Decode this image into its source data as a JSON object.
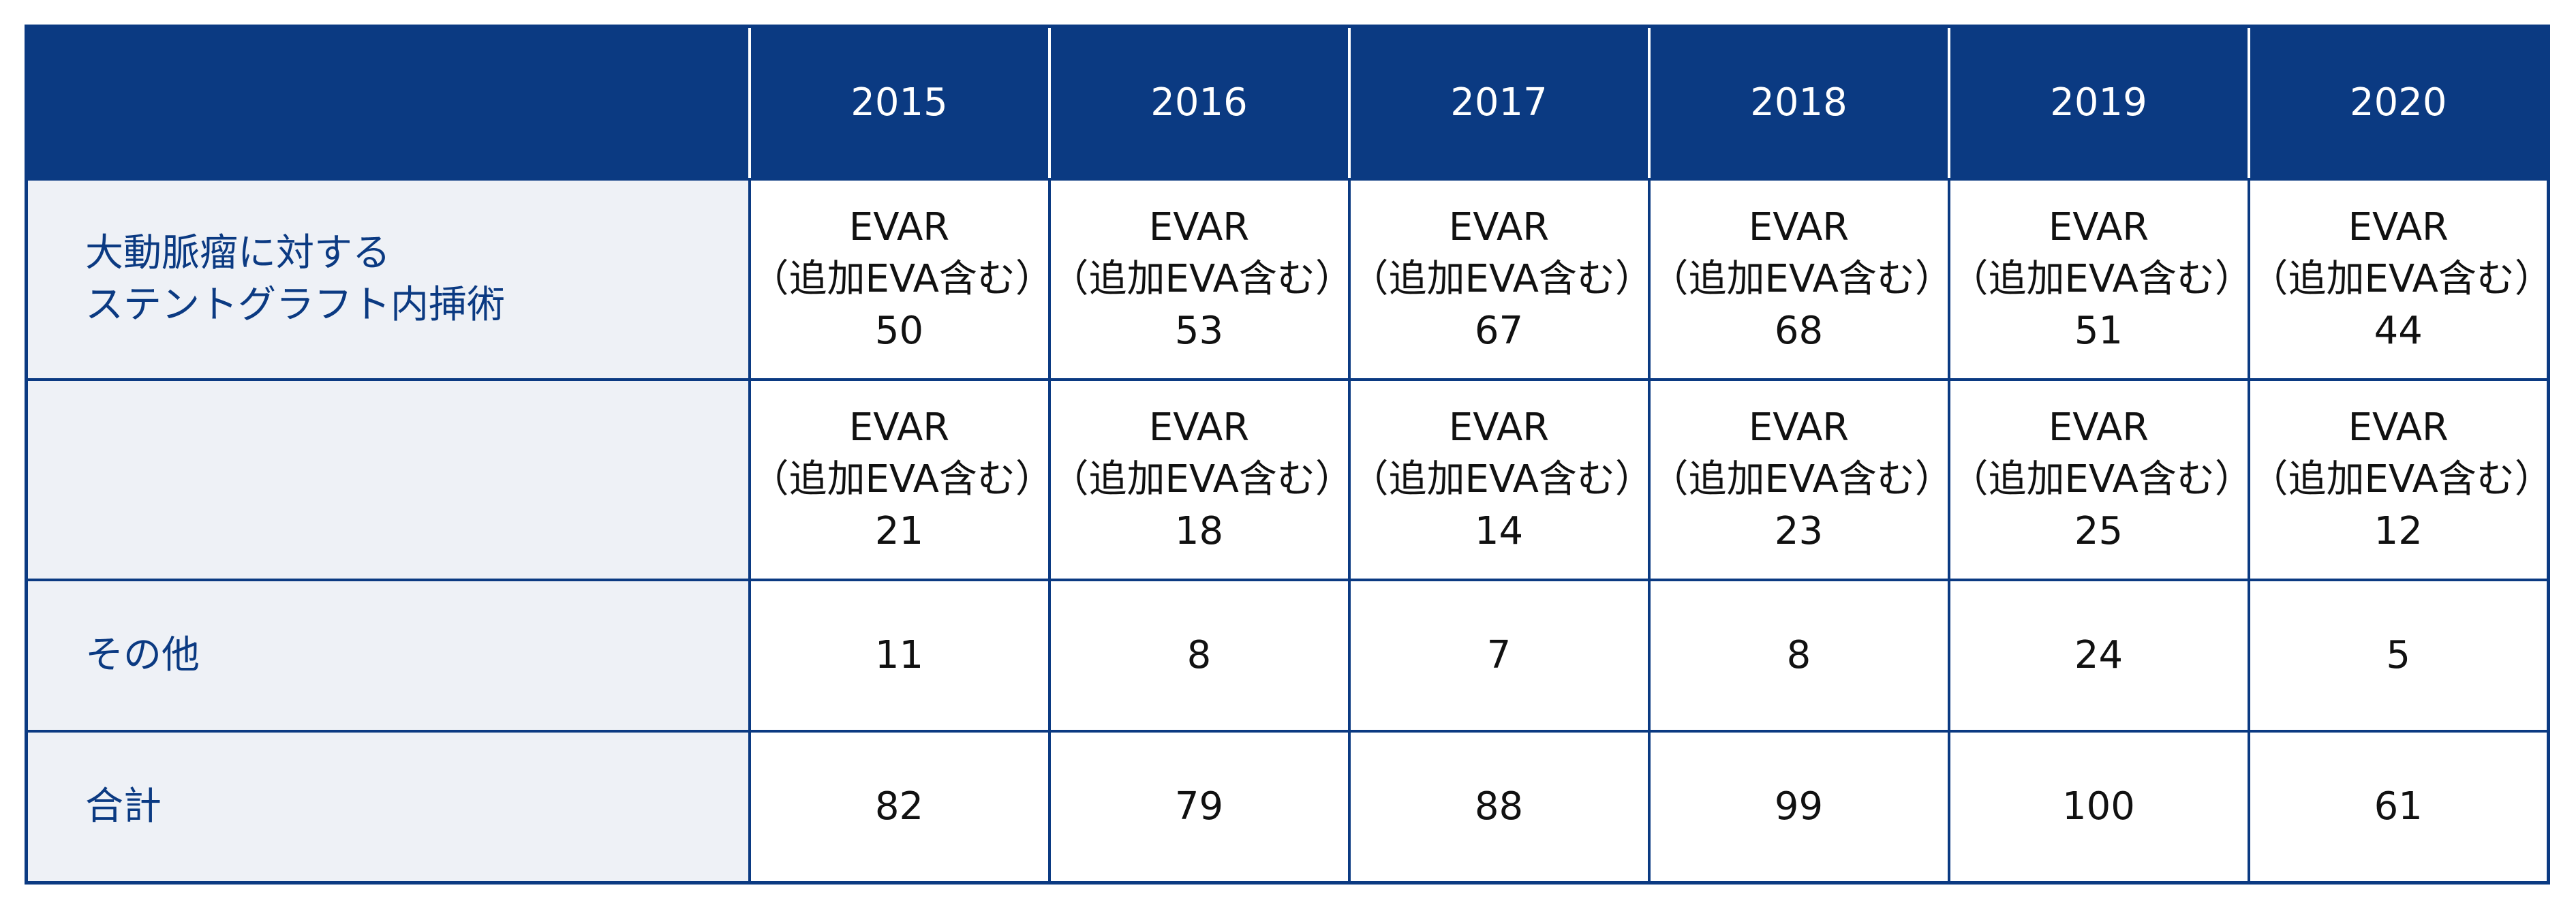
{
  "table": {
    "years": [
      "2015",
      "2016",
      "2017",
      "2018",
      "2019",
      "2020"
    ],
    "rows": [
      {
        "label": [
          "大動脈瘤に対する",
          "ステントグラフト内挿術"
        ],
        "cells": [
          {
            "method": "EVAR",
            "note": "（追加EVA含む）",
            "count": 50
          },
          {
            "method": "EVAR",
            "note": "（追加EVA含む）",
            "count": 53
          },
          {
            "method": "EVAR",
            "note": "（追加EVA含む）",
            "count": 67
          },
          {
            "method": "EVAR",
            "note": "（追加EVA含む）",
            "count": 68
          },
          {
            "method": "EVAR",
            "note": "（追加EVA含む）",
            "count": 51
          },
          {
            "method": "EVAR",
            "note": "（追加EVA含む）",
            "count": 44
          }
        ]
      },
      {
        "cells": [
          {
            "method": "EVAR",
            "note": "（追加EVA含む）",
            "count": 21
          },
          {
            "method": "EVAR",
            "note": "（追加EVA含む）",
            "count": 18
          },
          {
            "method": "EVAR",
            "note": "（追加EVA含む）",
            "count": 14
          },
          {
            "method": "EVAR",
            "note": "（追加EVA含む）",
            "count": 23
          },
          {
            "method": "EVAR",
            "note": "（追加EVA含む）",
            "count": 25
          },
          {
            "method": "EVAR",
            "note": "（追加EVA含む）",
            "count": 12
          }
        ]
      },
      {
        "label": [
          "その他"
        ],
        "cells": [
          {
            "count": 11
          },
          {
            "count": 8
          },
          {
            "count": 7
          },
          {
            "count": 8
          },
          {
            "count": 24
          },
          {
            "count": 5
          }
        ]
      },
      {
        "label": [
          "合計"
        ],
        "cells": [
          {
            "count": 82
          },
          {
            "count": 79
          },
          {
            "count": 88
          },
          {
            "count": 99
          },
          {
            "count": 100
          },
          {
            "count": 61
          }
        ]
      }
    ]
  }
}
